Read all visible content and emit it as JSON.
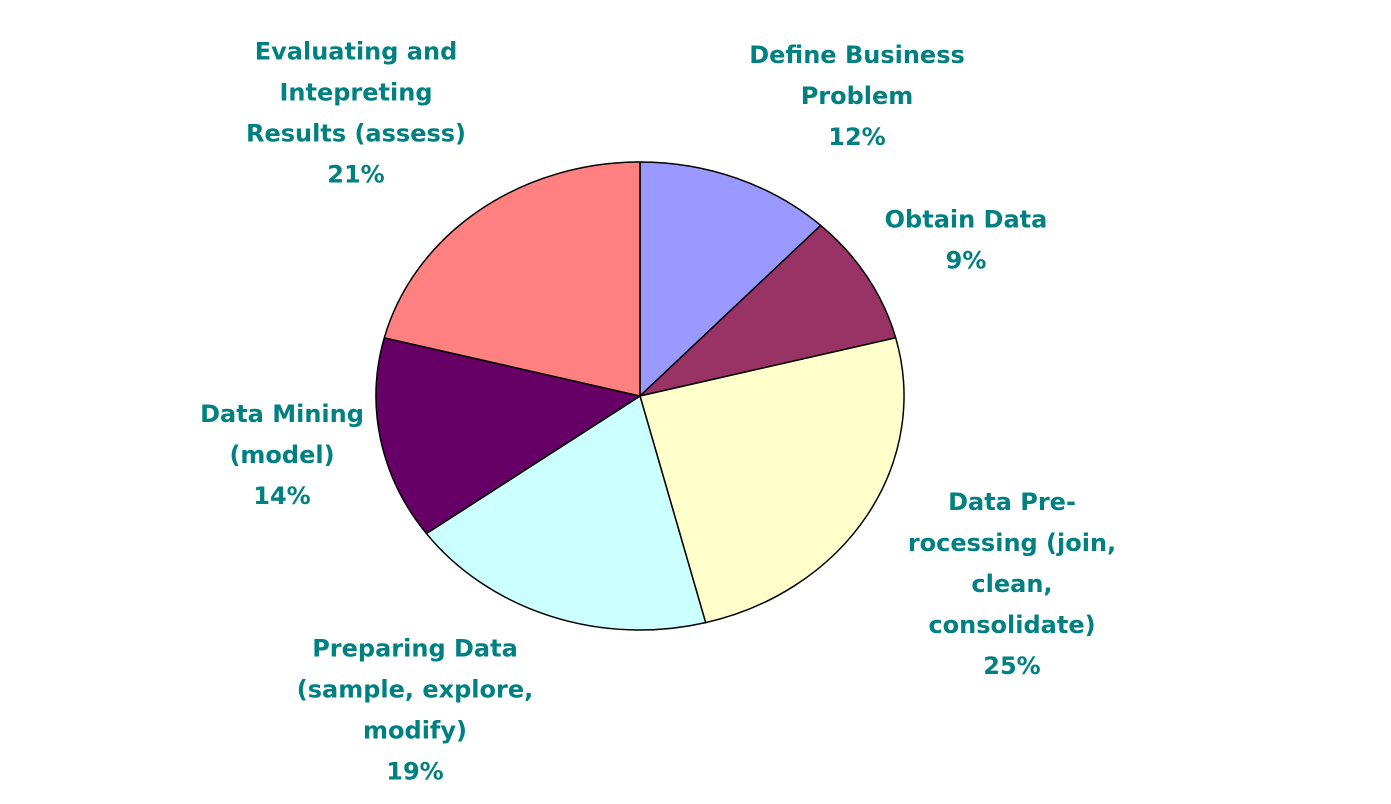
{
  "chart_data": {
    "type": "pie",
    "title": "",
    "label_color": "#008080",
    "start_angle_deg": 0,
    "direction": "clockwise",
    "slices": [
      {
        "label_lines": [
          "Define Business",
          "Problem"
        ],
        "value_label": "12%",
        "value": 12,
        "color": "#9999FF"
      },
      {
        "label_lines": [
          "Obtain Data"
        ],
        "value_label": "9%",
        "value": 9,
        "color": "#993366"
      },
      {
        "label_lines": [
          "Data Pre-",
          "rocessing (join,",
          "clean,",
          "consolidate)"
        ],
        "value_label": "25%",
        "value": 25,
        "color": "#FFFFCC"
      },
      {
        "label_lines": [
          "Preparing Data",
          "(sample, explore,",
          "modify)"
        ],
        "value_label": "19%",
        "value": 19,
        "color": "#CCFFFF"
      },
      {
        "label_lines": [
          "Data Mining",
          "(model)"
        ],
        "value_label": "14%",
        "value": 14,
        "color": "#660066"
      },
      {
        "label_lines": [
          "Evaluating and",
          "Intepreting",
          "Results (assess)"
        ],
        "value_label": "21%",
        "value": 21,
        "color": "#FF8080"
      }
    ]
  }
}
